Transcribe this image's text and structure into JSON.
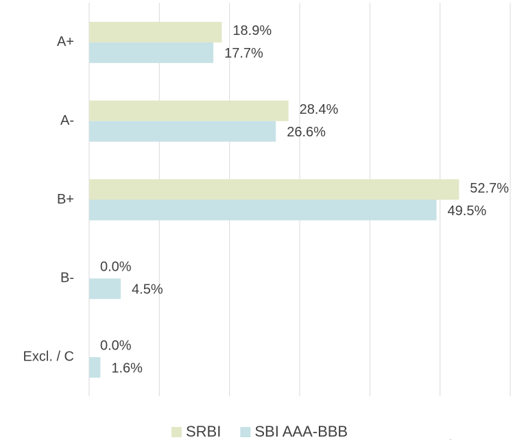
{
  "chart_data": {
    "type": "bar",
    "orientation": "horizontal",
    "categories": [
      "A+",
      "A-",
      "B+",
      "B-",
      "Excl. / C"
    ],
    "series": [
      {
        "name": "SRBI",
        "color": "#e2e7c6",
        "values": [
          18.9,
          28.4,
          52.7,
          0.0,
          0.0
        ],
        "value_labels": [
          "18.9%",
          "28.4%",
          "52.7%",
          "0.0%",
          "0.0%"
        ]
      },
      {
        "name": "SBI AAA-BBB",
        "color": "#c6e2e7",
        "values": [
          17.7,
          26.6,
          49.5,
          4.5,
          1.6
        ],
        "value_labels": [
          "17.7%",
          "26.6%",
          "49.5%",
          "4.5%",
          "1.6%"
        ]
      }
    ],
    "xlim": [
      0,
      60
    ],
    "xticks": [
      0,
      10,
      20,
      30,
      40,
      50,
      60
    ],
    "grid": true,
    "legend": "bottom",
    "source": "Source: Ethos SIX"
  }
}
